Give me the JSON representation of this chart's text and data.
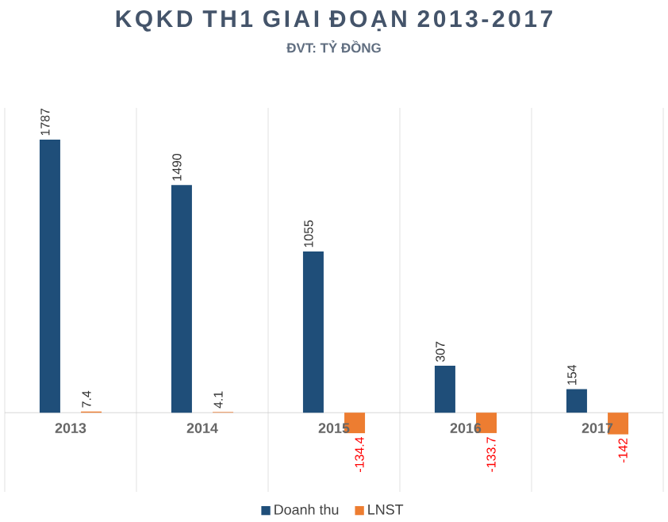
{
  "chart_data": {
    "type": "bar",
    "title": "KQKD TH1 GIAI ĐOẠN 2013-2017",
    "subtitle": "ĐVT: TỶ ĐỒNG",
    "categories": [
      "2013",
      "2014",
      "2015",
      "2016",
      "2017"
    ],
    "series": [
      {
        "name": "Doanh thu",
        "color": "#1f4e79",
        "values": [
          1787,
          1490,
          1055,
          307,
          154
        ]
      },
      {
        "name": "LNST",
        "color": "#ed7d31",
        "values": [
          7.4,
          4.1,
          -134.4,
          -133.7,
          -142
        ]
      }
    ],
    "data_labels": true,
    "grid": "x",
    "legend": "bottom"
  }
}
